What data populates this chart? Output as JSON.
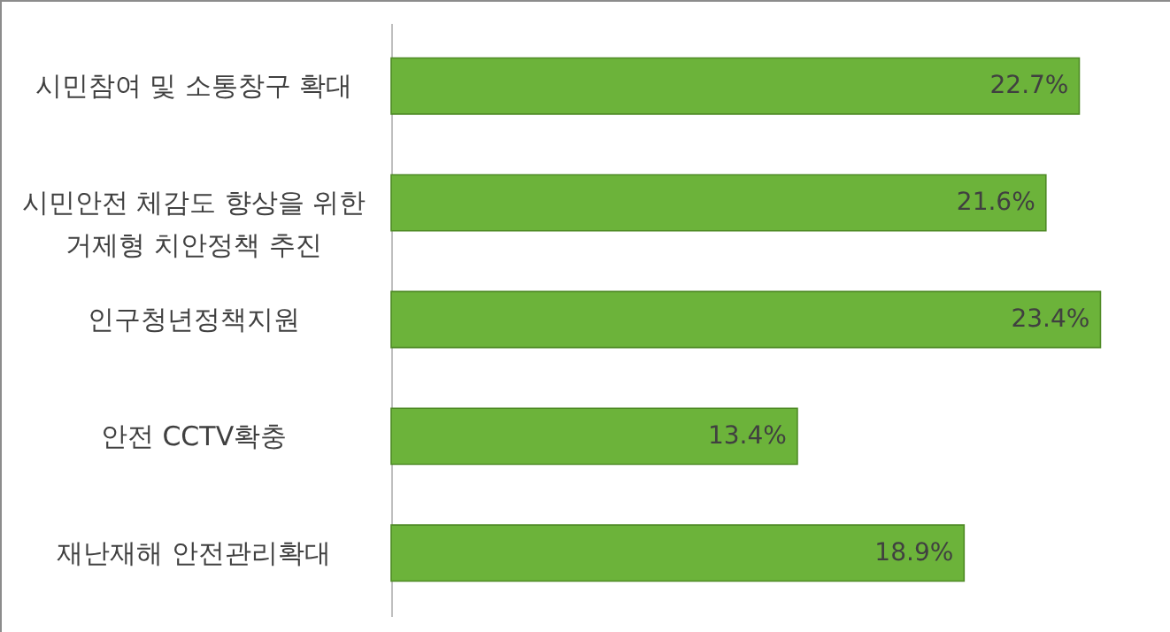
{
  "chart_data": {
    "type": "bar",
    "orientation": "horizontal",
    "categories": [
      "시민참여 및 소통창구 확대",
      "시민안전 체감도 향상을 위한\n거제형 치안정책 추진",
      "인구청년정책지원",
      "안전 CCTV확충",
      "재난재해 안전관리확대"
    ],
    "values": [
      22.7,
      21.6,
      23.4,
      13.4,
      18.9
    ],
    "value_labels": [
      "22.7%",
      "21.6%",
      "23.4%",
      "13.4%",
      "18.9%"
    ],
    "color": "#6cb33a",
    "tick_labels": "y"
  }
}
